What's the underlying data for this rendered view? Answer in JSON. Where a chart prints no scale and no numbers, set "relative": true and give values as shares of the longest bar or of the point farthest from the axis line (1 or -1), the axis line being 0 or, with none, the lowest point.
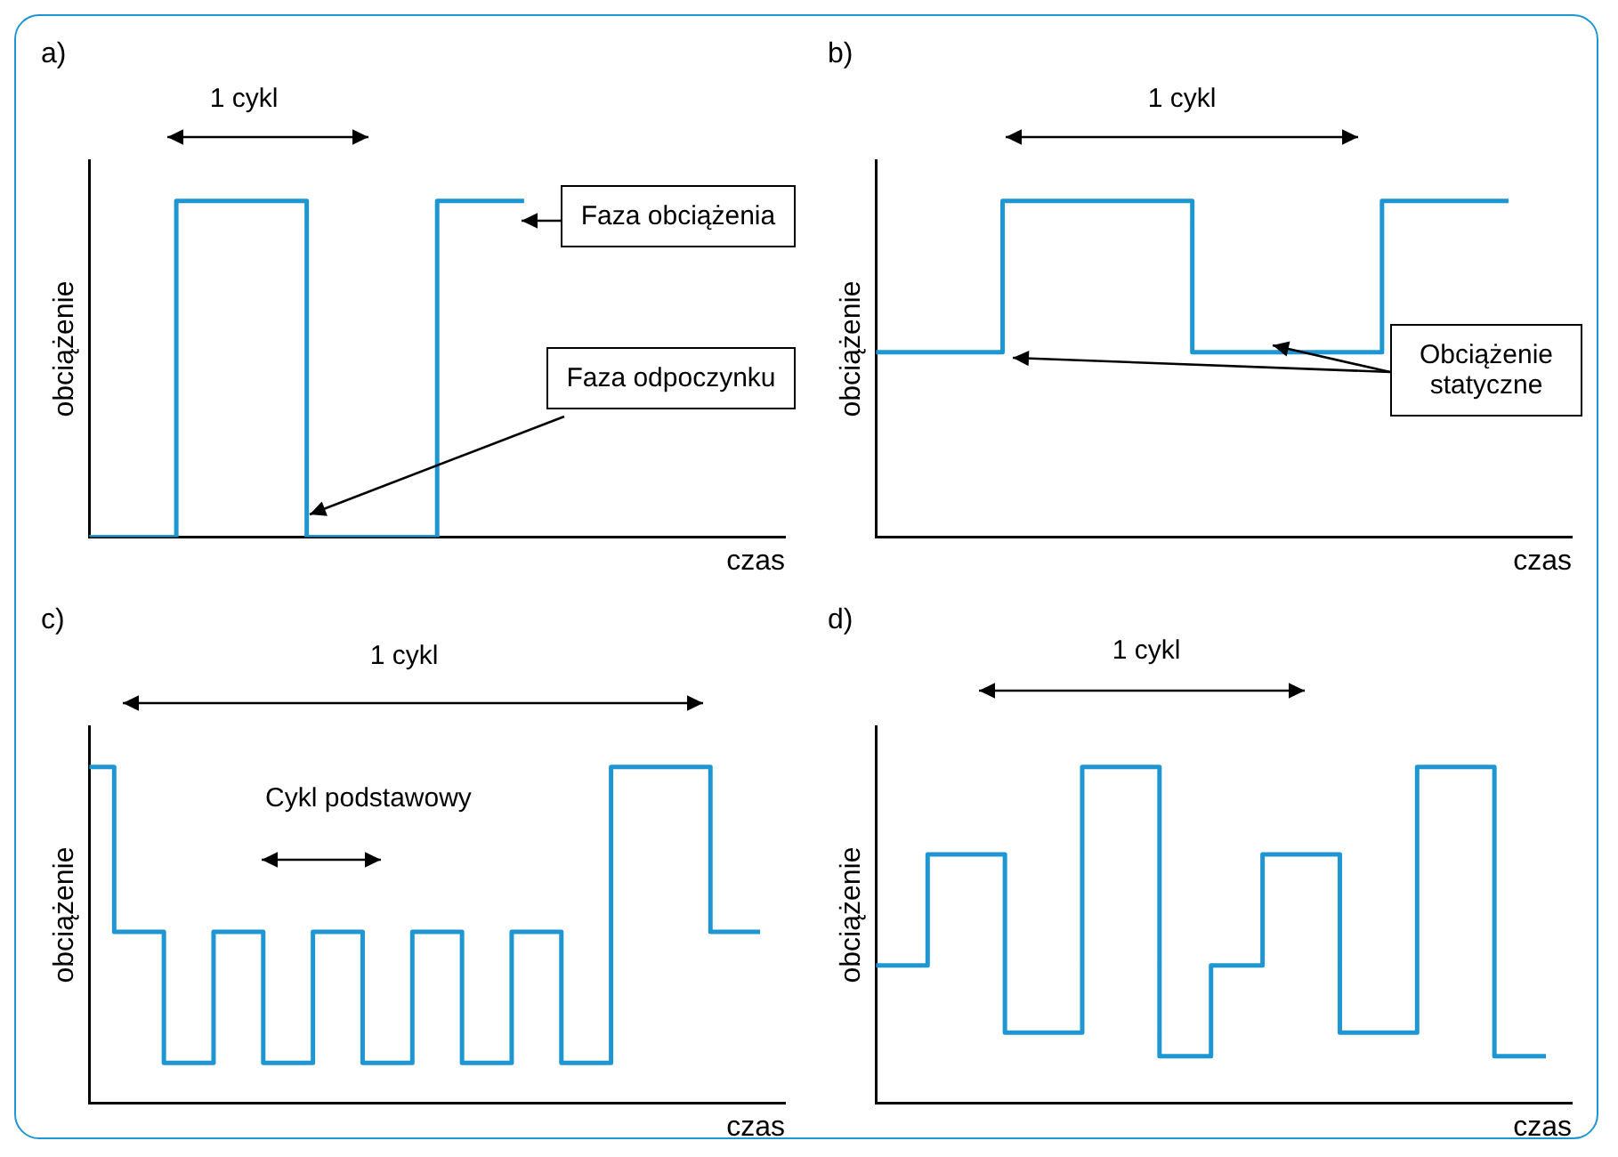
{
  "chart_data": [
    {
      "type": "step",
      "title": "a)",
      "xlabel": "czas",
      "ylabel": "obciążenie",
      "relative": true,
      "marker": "none",
      "categories": [
        null,
        null,
        null,
        null,
        null,
        null,
        null,
        null,
        null,
        null,
        null,
        null,
        null,
        null,
        null,
        null,
        null
      ],
      "series": [
        {
          "color": "#1e96d2",
          "values": [
            0,
            0,
            1,
            1,
            1,
            0,
            0,
            0,
            1,
            1,
            1,
            null,
            null,
            null,
            null,
            null,
            null
          ]
        }
      ],
      "annotations": [
        "1 cykl",
        "Faza obciążenia",
        "Faza odpoczynku"
      ]
    },
    {
      "type": "step",
      "title": "b)",
      "xlabel": "czas",
      "ylabel": "obciążenie",
      "relative": true,
      "marker": "none",
      "categories": [
        null,
        null,
        null,
        null,
        null,
        null,
        null,
        null,
        null,
        null,
        null,
        null
      ],
      "series": [
        {
          "color": "#1e96d2",
          "values": [
            0.55,
            0.55,
            1,
            1,
            1,
            0.55,
            0.55,
            0.55,
            1,
            1,
            1,
            null
          ]
        }
      ],
      "annotations": [
        "1 cykl",
        "Obciążenie statyczne"
      ]
    },
    {
      "type": "step",
      "title": "c)",
      "xlabel": "czas",
      "ylabel": "obciążenie",
      "relative": true,
      "marker": "none",
      "categories": [
        null,
        null,
        null,
        null,
        null,
        null,
        null,
        null,
        null,
        null,
        null,
        null,
        null,
        null,
        null,
        null,
        null,
        null,
        null,
        null,
        null,
        null,
        null,
        null,
        null,
        null,
        null,
        null,
        null
      ],
      "series": [
        {
          "color": "#1e96d2",
          "values": [
            1,
            0.51,
            0.51,
            0.12,
            0.12,
            0.51,
            0.51,
            0.12,
            0.12,
            0.51,
            0.51,
            0.12,
            0.12,
            0.51,
            0.51,
            0.12,
            0.12,
            0.51,
            0.51,
            0.12,
            0.12,
            1,
            1,
            1,
            1,
            0.51,
            0.51,
            0.51,
            null
          ]
        }
      ],
      "annotations": [
        "1 cykl",
        "Cykl podstawowy"
      ]
    },
    {
      "type": "step",
      "title": "d)",
      "xlabel": "czas",
      "ylabel": "obciążenie",
      "relative": true,
      "marker": "none",
      "categories": [
        null,
        null,
        null,
        null,
        null,
        null,
        null,
        null,
        null,
        null,
        null,
        null,
        null,
        null,
        null,
        null,
        null,
        null,
        null,
        null,
        null,
        null,
        null,
        null,
        null,
        null,
        null,
        null
      ],
      "series": [
        {
          "color": "#1e96d2",
          "values": [
            0.41,
            0.41,
            0.74,
            0.74,
            0.74,
            0.21,
            0.21,
            0.21,
            1,
            1,
            1,
            0.14,
            0.14,
            0.41,
            0.41,
            0.74,
            0.74,
            0.74,
            0.21,
            0.21,
            0.21,
            1,
            1,
            1,
            0.14,
            0.14,
            0.14,
            null
          ]
        }
      ],
      "annotations": [
        "1 cykl"
      ]
    }
  ]
}
